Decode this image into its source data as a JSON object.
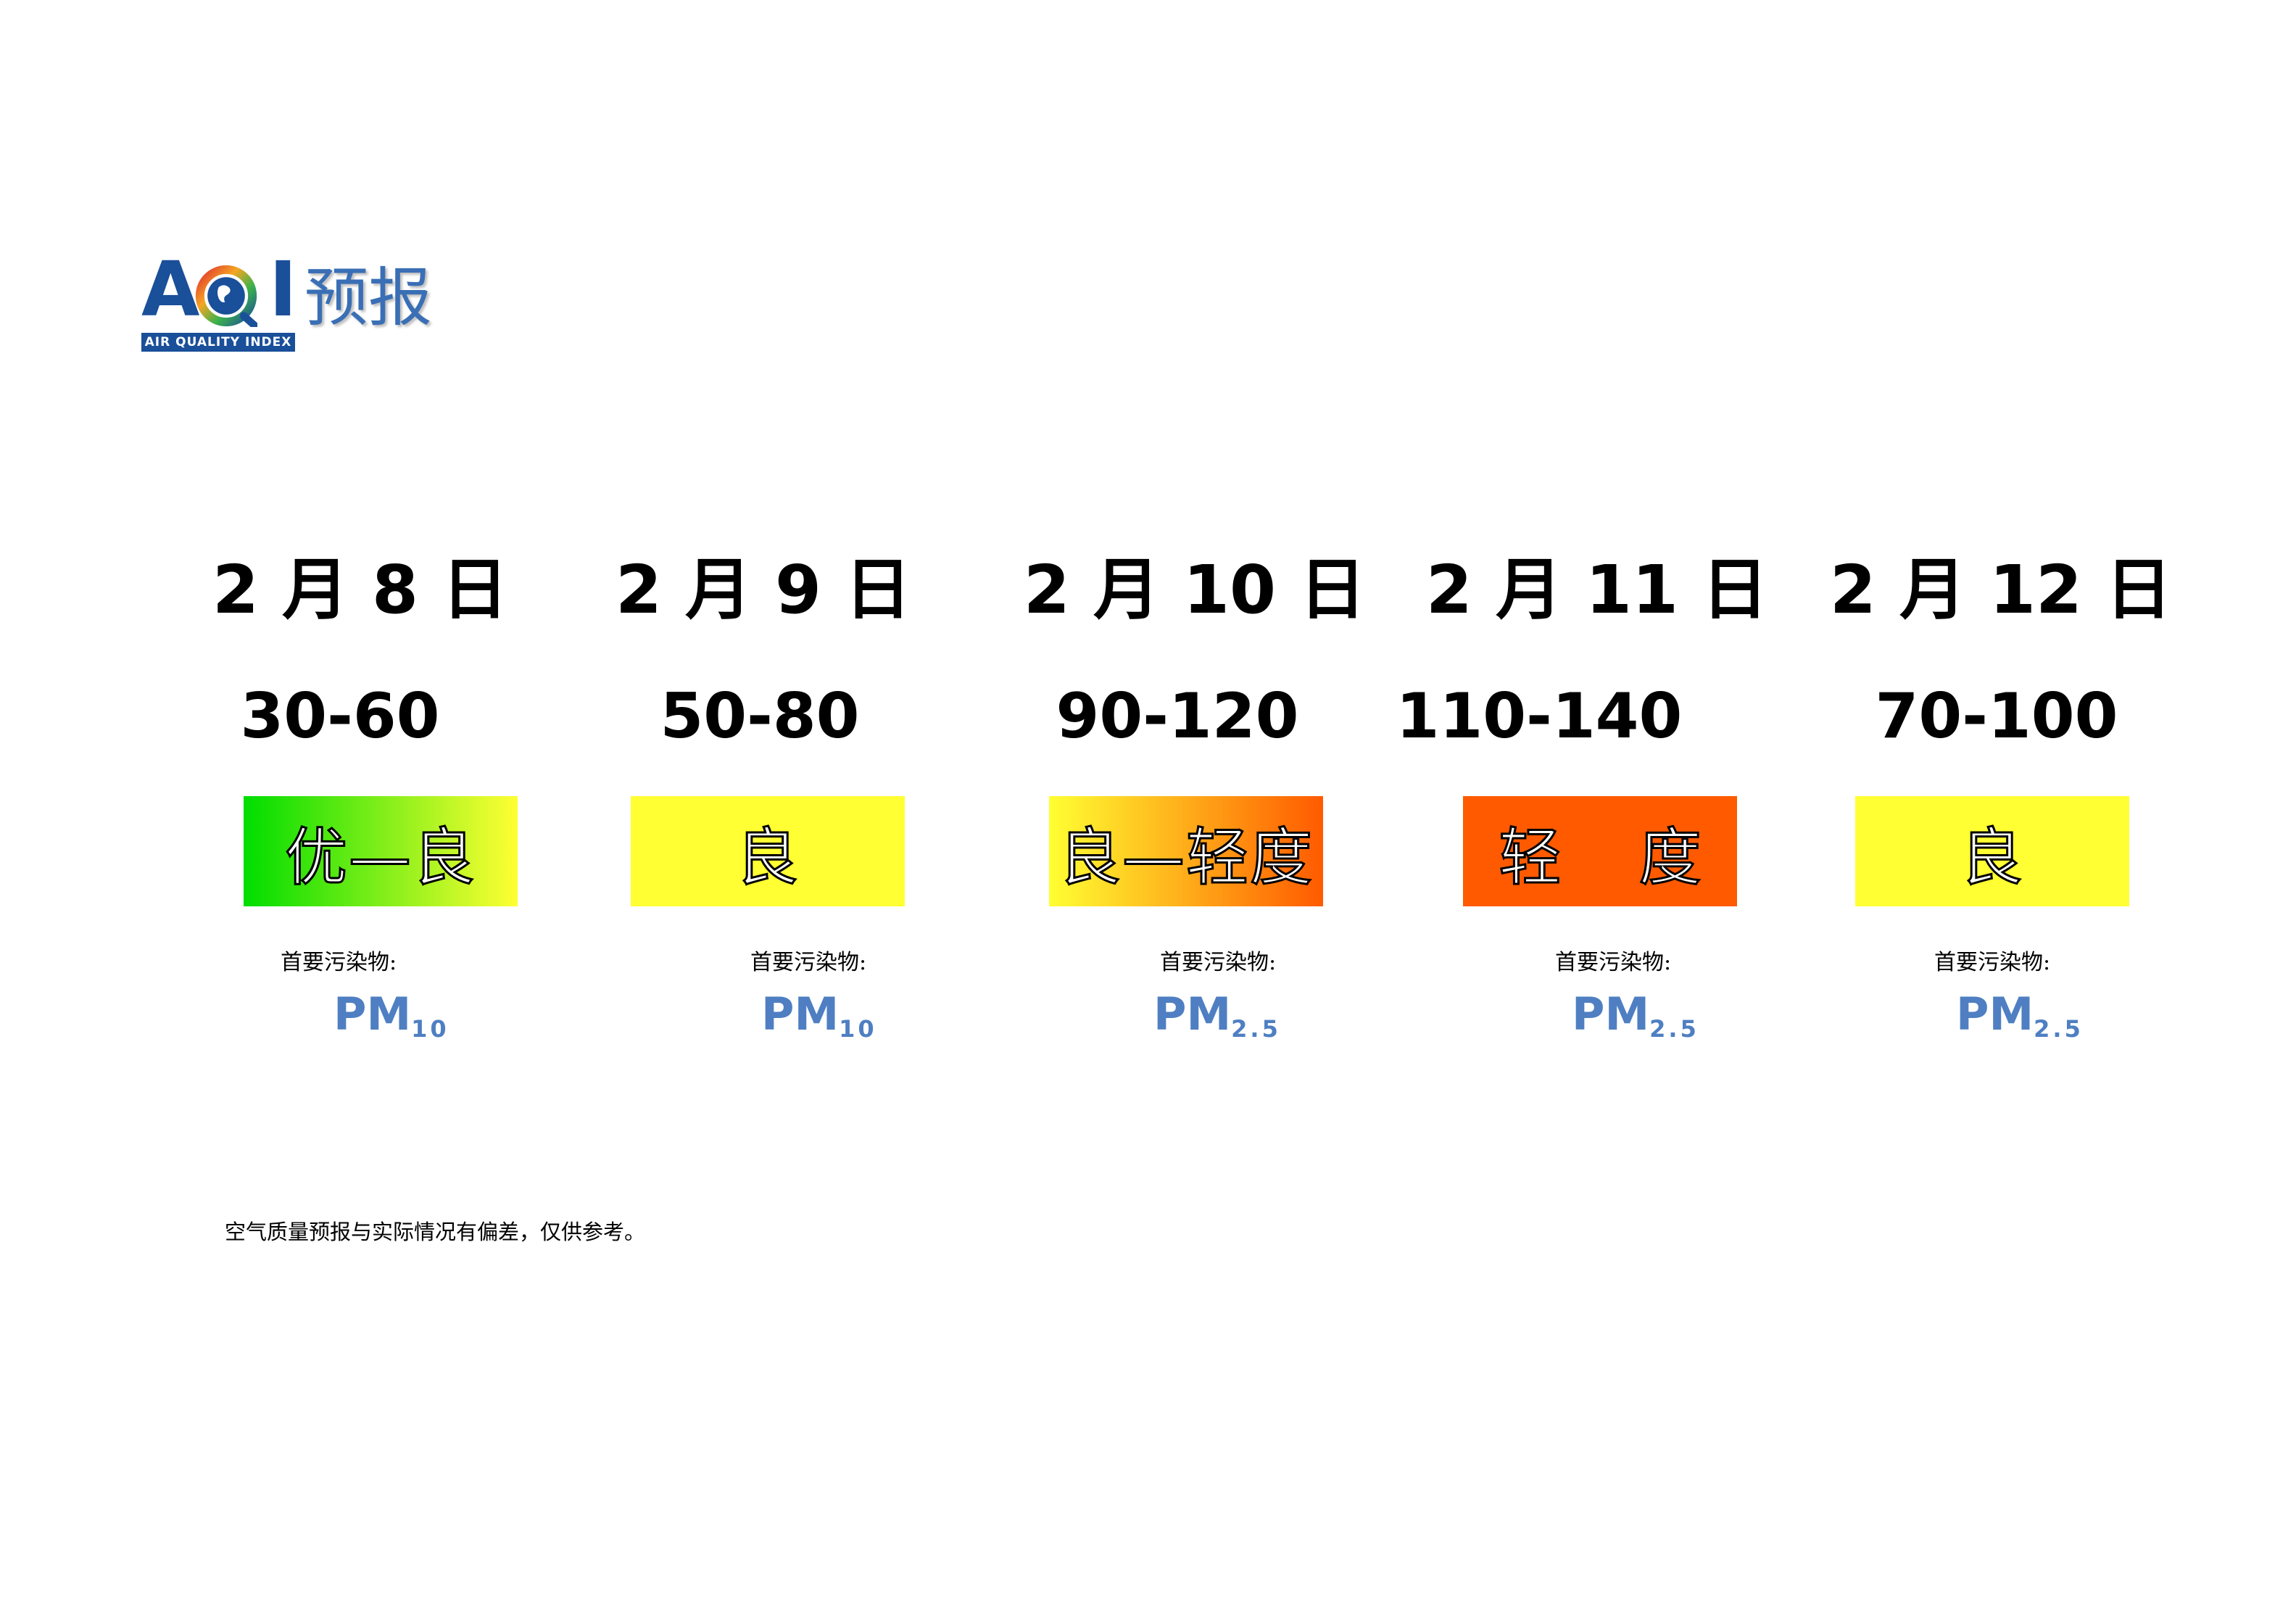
{
  "logo": {
    "letters": "AQI",
    "band": "AIR QUALITY INDEX",
    "title": "预报"
  },
  "pollutant_label": "首要污染物:",
  "days": [
    {
      "date": "2 月 8 日",
      "range": "30-60",
      "level": "优—良",
      "pollutant_main": "PM",
      "pollutant_sub": "10",
      "colors": [
        "#00dd00",
        "#ffff33"
      ]
    },
    {
      "date": "2 月 9 日",
      "range": "50-80",
      "level": "良",
      "pollutant_main": "PM",
      "pollutant_sub": "10",
      "colors": [
        "#ffff33",
        "#ffff33"
      ]
    },
    {
      "date": "2 月 10 日",
      "range": "90-120",
      "level": "良—轻度",
      "pollutant_main": "PM",
      "pollutant_sub": "2.5",
      "colors": [
        "#ffff33",
        "#ff5a00"
      ]
    },
    {
      "date": "2 月 11 日",
      "range": "110-140",
      "level": "轻 度",
      "pollutant_main": "PM",
      "pollutant_sub": "2.5",
      "colors": [
        "#ff5a00",
        "#ff5a00"
      ]
    },
    {
      "date": "2 月 12 日",
      "range": "70-100",
      "level": "良",
      "pollutant_main": "PM",
      "pollutant_sub": "2.5",
      "colors": [
        "#ffff33",
        "#ffff33"
      ]
    }
  ],
  "note": "空气质量预报与实际情况有偏差，仅供参考。"
}
